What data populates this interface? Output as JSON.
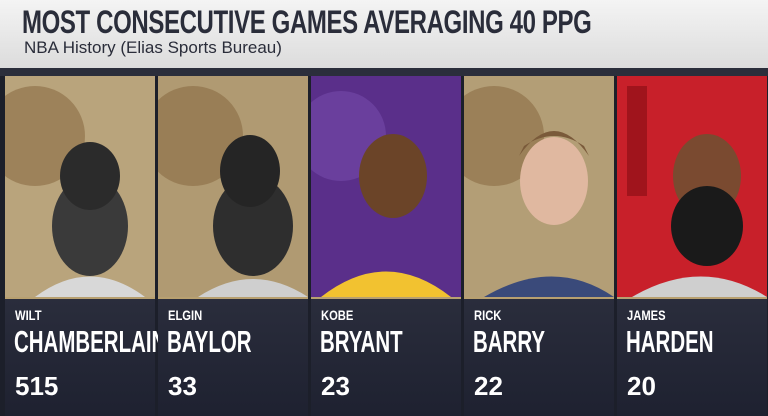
{
  "header": {
    "title": "MOST CONSECUTIVE GAMES AVERAGING 40 PPG",
    "subtitle": "NBA History (Elias Sports Bureau)"
  },
  "players": [
    {
      "first": "WILT",
      "last": "CHAMBERLAIN",
      "games": "515"
    },
    {
      "first": "ELGIN",
      "last": "BAYLOR",
      "games": "33"
    },
    {
      "first": "KOBE",
      "last": "BRYANT",
      "games": "23"
    },
    {
      "first": "RICK",
      "last": "BARRY",
      "games": "22"
    },
    {
      "first": "JAMES",
      "last": "HARDEN",
      "games": "20"
    }
  ]
}
